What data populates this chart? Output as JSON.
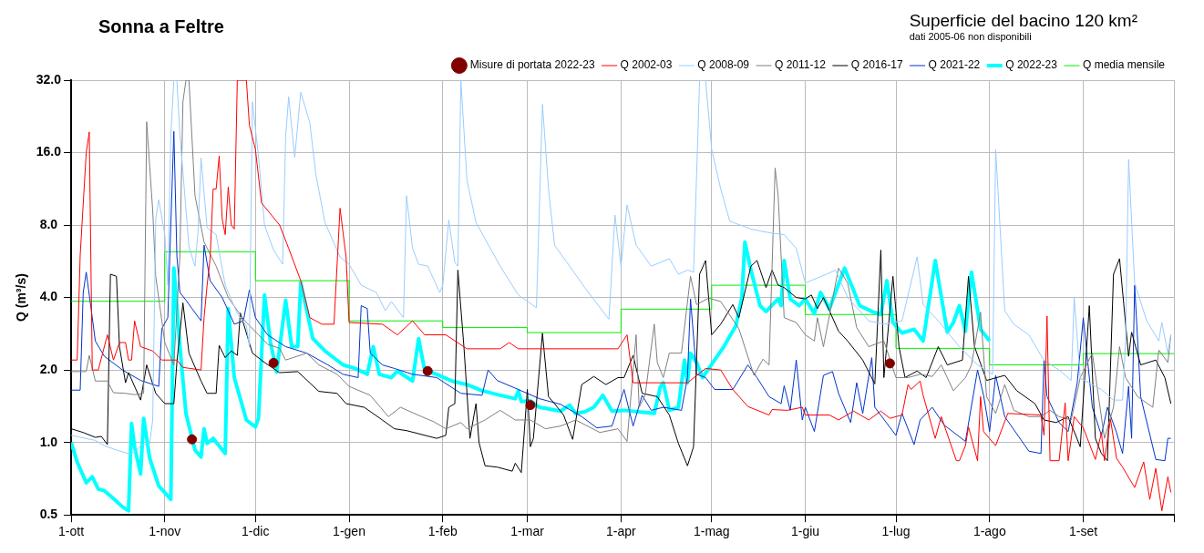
{
  "chart_data": {
    "type": "line",
    "title": "Sonna a Feltre",
    "subtitle": "Superficie del bacino 120 km²",
    "annotations": [
      "dati 2005-06 non disponibili"
    ],
    "ylabel": "Q (m³/s)",
    "xlim": [
      "2022-10-01",
      "2023-10-01"
    ],
    "xticks": [
      {
        "value": "2022-10-01",
        "label": "1-ott"
      },
      {
        "value": "2022-11-01",
        "label": "1-nov"
      },
      {
        "value": "2022-12-01",
        "label": "1-dic"
      },
      {
        "value": "2023-01-01",
        "label": "1-gen"
      },
      {
        "value": "2023-02-01",
        "label": "1-feb"
      },
      {
        "value": "2023-03-01",
        "label": "1-mar"
      },
      {
        "value": "2023-04-01",
        "label": "1-apr"
      },
      {
        "value": "2023-05-01",
        "label": "1-mag"
      },
      {
        "value": "2023-06-01",
        "label": "1-giu"
      },
      {
        "value": "2023-07-01",
        "label": "1-lug"
      },
      {
        "value": "2023-08-01",
        "label": "1-ago"
      },
      {
        "value": "2023-09-01",
        "label": "1-set"
      },
      {
        "value": "2023-10-01",
        "label": null
      }
    ],
    "ylim": [
      0.5,
      32
    ],
    "yticks": [
      {
        "value": 0.5,
        "label": "0.5"
      },
      {
        "value": 1,
        "label": "1.0"
      },
      {
        "value": 2,
        "label": "2.0"
      },
      {
        "value": 4,
        "label": "4.0"
      },
      {
        "value": 8,
        "label": "8.0"
      },
      {
        "value": 16,
        "label": "16.0"
      },
      {
        "value": 32,
        "label": "32.0"
      }
    ],
    "log": "y",
    "grid": true,
    "legend": "top right",
    "marker": "none",
    "series": [
      {
        "name": "Q 2002-03",
        "color": "#ff0000",
        "x": [
          "2022-10-01",
          "2022-10-03",
          "2022-10-04",
          "2022-10-06",
          "2022-10-07",
          "2022-10-08",
          "2022-10-10",
          "2022-10-13",
          "2022-10-15",
          "2022-10-17",
          "2022-10-19",
          "2022-10-20",
          "2022-10-21",
          "2022-10-22",
          "2022-10-24",
          "2022-10-28",
          "2022-10-31",
          "2022-11-05",
          "2022-11-07",
          "2022-11-13",
          "2022-11-14",
          "2022-11-15",
          "2022-11-16",
          "2022-11-17",
          "2022-11-18",
          "2022-11-19",
          "2022-11-20",
          "2022-11-21",
          "2022-11-22",
          "2022-11-23",
          "2022-11-24",
          "2022-11-25",
          "2022-11-28",
          "2022-11-29",
          "2022-12-01",
          "2022-12-03",
          "2022-12-09",
          "2022-12-12",
          "2022-12-16",
          "2022-12-19",
          "2022-12-23",
          "2022-12-27",
          "2022-12-29",
          "2022-12-31",
          "2023-01-01",
          "2023-01-12",
          "2023-01-17",
          "2023-01-22",
          "2023-01-26",
          "2023-02-02",
          "2023-02-09",
          "2023-02-20",
          "2023-02-23",
          "2023-02-26",
          "2023-03-31",
          "2023-04-03",
          "2023-04-05",
          "2023-04-23",
          "2023-04-29",
          "2023-05-04",
          "2023-05-08",
          "2023-05-13",
          "2023-05-20",
          "2023-05-21",
          "2023-05-26",
          "2023-05-31",
          "2023-06-01",
          "2023-06-09",
          "2023-06-12",
          "2023-06-17",
          "2023-06-22",
          "2023-06-26",
          "2023-06-29",
          "2023-07-03",
          "2023-07-05",
          "2023-07-06",
          "2023-07-09",
          "2023-07-10",
          "2023-07-14",
          "2023-07-16",
          "2023-07-21",
          "2023-07-22",
          "2023-07-24",
          "2023-07-25",
          "2023-07-28",
          "2023-07-29",
          "2023-07-30",
          "2023-08-03",
          "2023-08-07",
          "2023-08-18",
          "2023-08-19",
          "2023-08-20",
          "2023-08-21",
          "2023-08-24",
          "2023-08-26",
          "2023-08-27",
          "2023-08-29",
          "2023-09-01",
          "2023-09-05",
          "2023-09-07",
          "2023-09-08",
          "2023-09-10",
          "2023-09-12",
          "2023-09-14",
          "2023-09-18",
          "2023-09-21",
          "2023-09-23",
          "2023-09-25",
          "2023-09-27",
          "2023-09-29",
          "2023-09-30"
        ],
        "values": [
          2.2,
          2.2,
          6,
          16,
          19.5,
          2.0,
          2.0,
          2.8,
          2.2,
          2.6,
          2.6,
          2.2,
          2.2,
          3.2,
          2.5,
          2.4,
          2.2,
          2.2,
          2.05,
          2.0,
          3.3,
          4.5,
          5.8,
          11.3,
          11.3,
          15.5,
          8.5,
          7.3,
          11.5,
          8,
          7.7,
          32,
          32,
          20.8,
          16.5,
          9.9,
          8,
          6.4,
          4.7,
          3.3,
          3.1,
          3.1,
          9.4,
          5.9,
          3.15,
          3.1,
          2.8,
          3.2,
          2.8,
          2.8,
          2.45,
          2.45,
          2.6,
          2.45,
          2.45,
          2.8,
          1.77,
          1.77,
          2.03,
          2.0,
          1.66,
          1.41,
          1.3,
          1.37,
          1.36,
          1.4,
          1.3,
          1.3,
          1.24,
          1.35,
          1.24,
          1.35,
          1.26,
          1.3,
          1.74,
          1.66,
          1.8,
          1.57,
          1.04,
          1.28,
          0.84,
          0.84,
          0.97,
          1.16,
          0.84,
          1.55,
          1.11,
          0.97,
          1.32,
          1.3,
          1.07,
          3.35,
          0.84,
          0.84,
          1.46,
          0.84,
          1.28,
          1.15,
          0.85,
          1.1,
          0.84,
          1.25,
          0.86,
          0.79,
          0.65,
          0.83,
          0.58,
          0.78,
          0.52,
          0.72,
          0.62
        ]
      },
      {
        "name": "Q 2008-09",
        "color": "#99ccff",
        "x": [
          "2022-10-01",
          "2022-10-09",
          "2022-10-12",
          "2022-10-16",
          "2022-10-20",
          "2022-10-22",
          "2022-10-24",
          "2022-10-27",
          "2022-10-28",
          "2022-10-29",
          "2022-10-30",
          "2022-11-01",
          "2022-11-02",
          "2022-11-03",
          "2022-11-04",
          "2022-11-05",
          "2022-11-06",
          "2022-11-09",
          "2022-11-11",
          "2022-11-12",
          "2022-11-13",
          "2022-11-15",
          "2022-11-18",
          "2022-11-21",
          "2022-11-25",
          "2022-11-28",
          "2022-11-29",
          "2022-11-30",
          "2022-12-02",
          "2022-12-04",
          "2022-12-07",
          "2022-12-10",
          "2022-12-11",
          "2022-12-12",
          "2022-12-14",
          "2022-12-16",
          "2022-12-19",
          "2022-12-21",
          "2022-12-24",
          "2022-12-29",
          "2023-01-01",
          "2023-01-05",
          "2023-01-10",
          "2023-01-13",
          "2023-01-15",
          "2023-01-19",
          "2023-01-20",
          "2023-01-22",
          "2023-01-24",
          "2023-01-27",
          "2023-01-31",
          "2023-02-01",
          "2023-02-03",
          "2023-02-05",
          "2023-02-06",
          "2023-02-07",
          "2023-02-09",
          "2023-02-12",
          "2023-02-20",
          "2023-02-26",
          "2023-03-04",
          "2023-03-06",
          "2023-03-08",
          "2023-03-10",
          "2023-03-15",
          "2023-03-20",
          "2023-03-28",
          "2023-03-30",
          "2023-04-01",
          "2023-04-03",
          "2023-04-06",
          "2023-04-11",
          "2023-04-17",
          "2023-04-20",
          "2023-04-23",
          "2023-04-25",
          "2023-04-27",
          "2023-04-29",
          "2023-05-01",
          "2023-05-04",
          "2023-05-07",
          "2023-05-14",
          "2023-05-21",
          "2023-05-25",
          "2023-05-29",
          "2023-06-01",
          "2023-06-08",
          "2023-06-11",
          "2023-06-15",
          "2023-06-22",
          "2023-06-27",
          "2023-07-03",
          "2023-07-08",
          "2023-07-10",
          "2023-07-15",
          "2023-07-22",
          "2023-07-28",
          "2023-08-02",
          "2023-08-03",
          "2023-08-06",
          "2023-08-09",
          "2023-08-14",
          "2023-08-19",
          "2023-08-24",
          "2023-08-28",
          "2023-08-29",
          "2023-08-31",
          "2023-09-07",
          "2023-09-11",
          "2023-09-14",
          "2023-09-15",
          "2023-09-16",
          "2023-09-18",
          "2023-09-22",
          "2023-09-26",
          "2023-09-27",
          "2023-09-29",
          "2023-09-30"
        ],
        "values": [
          1.07,
          1.02,
          0.97,
          0.93,
          0.9,
          0.91,
          0.97,
          0.99,
          1.24,
          8.5,
          10.2,
          7.3,
          4.5,
          19,
          32,
          32,
          19,
          6.5,
          5.4,
          7.5,
          15.2,
          7.8,
          7.3,
          4.5,
          3.43,
          3.06,
          2.5,
          26,
          15.5,
          8,
          6.3,
          5.5,
          18.6,
          27.3,
          15.3,
          28.5,
          21.3,
          13,
          8.2,
          5.9,
          5.5,
          4.5,
          4.2,
          3.53,
          3.85,
          3.3,
          10.6,
          6.4,
          5.5,
          5.4,
          4.2,
          4.5,
          8.4,
          5.6,
          5.4,
          32,
          12.3,
          8.2,
          5.4,
          4.1,
          3.63,
          25.4,
          11.3,
          6.6,
          5.4,
          4.4,
          3.25,
          8.8,
          5.4,
          9.7,
          6.6,
          5.4,
          5.8,
          5.0,
          5.2,
          5.1,
          32,
          32,
          16.5,
          11.3,
          8.3,
          7.7,
          7.4,
          7.3,
          6.4,
          4.6,
          5.0,
          5.2,
          4.0,
          3.2,
          3.1,
          3.2,
          5.9,
          3.74,
          3.2,
          2.5,
          2.1,
          1.92,
          16.5,
          3.53,
          3.1,
          2.8,
          2.19,
          2.0,
          1.81,
          4.0,
          1.85,
          1.66,
          1.5,
          1.5,
          2.64,
          15,
          4.6,
          3.2,
          2.64,
          3.15,
          2.35,
          2.8
        ]
      },
      {
        "name": "Q 2011-12",
        "color": "#808080",
        "x": [
          "2022-10-01",
          "2022-10-06",
          "2022-10-07",
          "2022-10-09",
          "2022-10-13",
          "2022-10-15",
          "2022-10-19",
          "2022-10-22",
          "2022-10-25",
          "2022-10-26",
          "2022-10-28",
          "2022-10-29",
          "2022-11-01",
          "2022-11-04",
          "2022-11-06",
          "2022-11-07",
          "2022-11-08",
          "2022-11-09",
          "2022-11-11",
          "2022-11-14",
          "2022-11-18",
          "2022-11-22",
          "2022-11-27",
          "2022-12-02",
          "2022-12-05",
          "2022-12-09",
          "2022-12-11",
          "2022-12-18",
          "2022-12-22",
          "2022-12-28",
          "2023-01-01",
          "2023-01-08",
          "2023-01-14",
          "2023-01-18",
          "2023-01-25",
          "2023-01-29",
          "2023-02-02",
          "2023-02-07",
          "2023-02-09",
          "2023-02-15",
          "2023-02-20",
          "2023-02-25",
          "2023-03-02",
          "2023-03-07",
          "2023-03-12",
          "2023-03-17",
          "2023-03-25",
          "2023-03-31",
          "2023-04-03",
          "2023-04-06",
          "2023-04-07",
          "2023-04-09",
          "2023-04-12",
          "2023-04-13",
          "2023-04-15",
          "2023-04-17",
          "2023-04-21",
          "2023-04-24",
          "2023-04-26",
          "2023-04-30",
          "2023-05-04",
          "2023-05-10",
          "2023-05-15",
          "2023-05-18",
          "2023-05-20",
          "2023-05-22",
          "2023-05-23",
          "2023-05-25",
          "2023-05-29",
          "2023-06-01",
          "2023-06-04",
          "2023-06-05",
          "2023-06-07",
          "2023-06-12",
          "2023-06-15",
          "2023-06-18",
          "2023-06-22",
          "2023-06-27",
          "2023-07-01",
          "2023-07-05",
          "2023-07-09",
          "2023-07-13",
          "2023-07-16",
          "2023-07-20",
          "2023-07-24",
          "2023-07-26",
          "2023-07-29",
          "2023-07-31",
          "2023-08-03",
          "2023-08-06",
          "2023-08-09",
          "2023-08-14",
          "2023-08-18",
          "2023-08-21",
          "2023-08-24",
          "2023-08-28",
          "2023-08-31",
          "2023-09-04",
          "2023-09-08",
          "2023-09-11",
          "2023-09-13",
          "2023-09-15",
          "2023-09-19",
          "2023-09-24",
          "2023-09-26",
          "2023-09-29",
          "2023-09-30"
        ],
        "values": [
          1.97,
          1.97,
          2.3,
          1.8,
          1.8,
          1.61,
          1.6,
          1.58,
          1.6,
          21.5,
          9.2,
          4.9,
          2.6,
          2.1,
          5.95,
          26,
          32,
          32,
          10.6,
          6.8,
          5.4,
          4.0,
          3.25,
          2.8,
          2.56,
          2.46,
          2.2,
          2.35,
          2.1,
          1.92,
          1.71,
          1.57,
          1.28,
          1.4,
          1.28,
          1.22,
          1.14,
          1.21,
          1.14,
          1.24,
          1.36,
          1.24,
          1.24,
          1.14,
          1.17,
          1.24,
          1.1,
          1.14,
          1.01,
          2.8,
          1.4,
          1.57,
          3.1,
          2.15,
          1.86,
          2.35,
          2.35,
          4.9,
          3.74,
          3.98,
          3.85,
          2.97,
          1.9,
          2.22,
          2.1,
          13.8,
          10.6,
          3.3,
          3.15,
          2.8,
          2.64,
          3.3,
          2.5,
          5.3,
          4.6,
          3.0,
          2.5,
          2.64,
          1.86,
          1.86,
          1.92,
          1.88,
          2.1,
          1.64,
          1.86,
          2.1,
          3.48,
          1.55,
          1.32,
          1.74,
          1.36,
          1.28,
          1.28,
          1.36,
          1.28,
          1.24,
          1.86,
          2.35,
          1.04,
          1.4,
          2.5,
          1.86,
          1.55,
          1.4,
          2.42,
          2.15,
          2.8
        ]
      },
      {
        "name": "Q 2016-17",
        "color": "#000000",
        "x": [
          "2022-10-01",
          "2022-10-05",
          "2022-10-09",
          "2022-10-11",
          "2022-10-13",
          "2022-10-14",
          "2022-10-16",
          "2022-10-17",
          "2022-10-19",
          "2022-10-20",
          "2022-10-24",
          "2022-10-26",
          "2022-10-29",
          "2022-11-01",
          "2022-11-04",
          "2022-11-05",
          "2022-11-07",
          "2022-11-09",
          "2022-11-13",
          "2022-11-15",
          "2022-11-18",
          "2022-11-19",
          "2022-11-21",
          "2022-11-23",
          "2022-11-25",
          "2022-11-26",
          "2022-11-30",
          "2022-12-04",
          "2022-12-09",
          "2022-12-15",
          "2022-12-22",
          "2022-12-28",
          "2022-12-31",
          "2023-01-06",
          "2023-01-12",
          "2023-01-16",
          "2023-01-20",
          "2023-01-30",
          "2023-02-02",
          "2023-02-03",
          "2023-02-05",
          "2023-02-06",
          "2023-02-08",
          "2023-02-10",
          "2023-02-12",
          "2023-02-13",
          "2023-02-15",
          "2023-02-19",
          "2023-02-24",
          "2023-02-25",
          "2023-02-27",
          "2023-03-01",
          "2023-03-02",
          "2023-03-03",
          "2023-03-06",
          "2023-03-08",
          "2023-03-10",
          "2023-03-13",
          "2023-03-16",
          "2023-03-19",
          "2023-03-23",
          "2023-03-27",
          "2023-03-31",
          "2023-04-02",
          "2023-04-05",
          "2023-04-08",
          "2023-04-13",
          "2023-04-17",
          "2023-04-20",
          "2023-04-23",
          "2023-04-25",
          "2023-04-27",
          "2023-04-29",
          "2023-05-01",
          "2023-05-04",
          "2023-05-08",
          "2023-05-10",
          "2023-05-14",
          "2023-05-16",
          "2023-05-19",
          "2023-05-21",
          "2023-05-23",
          "2023-05-25",
          "2023-05-29",
          "2023-06-01",
          "2023-06-03",
          "2023-06-05",
          "2023-06-07",
          "2023-06-12",
          "2023-06-15",
          "2023-06-20",
          "2023-06-24",
          "2023-06-26",
          "2023-06-27",
          "2023-06-30",
          "2023-07-02",
          "2023-07-04",
          "2023-07-08",
          "2023-07-11",
          "2023-07-15",
          "2023-07-18",
          "2023-07-23",
          "2023-07-25",
          "2023-07-27",
          "2023-07-31",
          "2023-08-06",
          "2023-08-10",
          "2023-08-16",
          "2023-08-19",
          "2023-08-23",
          "2023-08-27",
          "2023-08-31",
          "2023-09-03",
          "2023-09-05",
          "2023-09-07",
          "2023-09-09",
          "2023-09-11",
          "2023-09-13",
          "2023-09-16",
          "2023-09-17",
          "2023-09-20",
          "2023-09-25",
          "2023-09-28",
          "2023-09-30"
        ],
        "values": [
          1.14,
          1.1,
          1.05,
          1.06,
          0.98,
          5.0,
          4.9,
          2.5,
          1.77,
          1.95,
          1.5,
          2.1,
          1.6,
          1.45,
          1.45,
          2.15,
          3.8,
          2.35,
          1.8,
          1.6,
          1.6,
          2.53,
          2.25,
          2.4,
          2.3,
          3.45,
          2.35,
          2.15,
          1.95,
          1.97,
          1.63,
          1.6,
          1.45,
          1.4,
          1.24,
          1.14,
          1.12,
          1.04,
          1.07,
          1.4,
          1.45,
          5.2,
          2.5,
          1.04,
          1.45,
          1.0,
          0.8,
          0.79,
          0.76,
          0.82,
          0.75,
          1.66,
          0.96,
          1.04,
          2.84,
          1.55,
          1.45,
          1.3,
          1.03,
          1.74,
          1.88,
          1.74,
          1.86,
          1.86,
          2.3,
          1.6,
          1.55,
          1.3,
          0.99,
          0.8,
          0.96,
          5.0,
          5.7,
          2.8,
          3.1,
          3.74,
          3.3,
          5.4,
          5.7,
          4.4,
          5.2,
          4.5,
          4.4,
          4.0,
          3.95,
          4.1,
          3.6,
          4.0,
          2.9,
          2.64,
          2.2,
          1.75,
          6.3,
          1.86,
          4.9,
          2.5,
          1.86,
          1.98,
          1.86,
          2.5,
          2.1,
          2.2,
          4.9,
          2.5,
          1.81,
          1.9,
          1.64,
          1.45,
          1.24,
          1.21,
          1.28,
          0.96,
          3.7,
          1.04,
          0.9,
          0.84,
          5.0,
          5.8,
          2.28,
          2.87,
          2.1,
          2.2,
          1.86,
          1.45
        ]
      },
      {
        "name": "Q 2021-22",
        "color": "#0033cc",
        "x": [
          "2022-10-01",
          "2022-10-04",
          "2022-10-05",
          "2022-10-06",
          "2022-10-08",
          "2022-10-09",
          "2022-10-12",
          "2022-10-18",
          "2022-10-24",
          "2022-10-30",
          "2022-10-31",
          "2022-11-02",
          "2022-11-04",
          "2022-11-05",
          "2022-11-06",
          "2022-11-08",
          "2022-11-10",
          "2022-11-13",
          "2022-11-14",
          "2022-11-16",
          "2022-11-20",
          "2022-11-24",
          "2022-11-27",
          "2022-11-29",
          "2022-12-01",
          "2022-12-05",
          "2022-12-11",
          "2022-12-18",
          "2022-12-25",
          "2022-12-30",
          "2023-01-04",
          "2023-01-05",
          "2023-01-07",
          "2023-01-08",
          "2023-01-12",
          "2023-01-16",
          "2023-01-22",
          "2023-01-30",
          "2023-02-07",
          "2023-02-14",
          "2023-02-16",
          "2023-02-19",
          "2023-02-26",
          "2023-03-05",
          "2023-03-12",
          "2023-03-19",
          "2023-03-24",
          "2023-03-29",
          "2023-04-02",
          "2023-04-05",
          "2023-04-08",
          "2023-04-11",
          "2023-04-15",
          "2023-04-21",
          "2023-04-23",
          "2023-04-24",
          "2023-04-26",
          "2023-04-29",
          "2023-05-02",
          "2023-05-08",
          "2023-05-13",
          "2023-05-16",
          "2023-05-20",
          "2023-05-24",
          "2023-05-25",
          "2023-05-27",
          "2023-05-29",
          "2023-05-31",
          "2023-06-01",
          "2023-06-04",
          "2023-06-07",
          "2023-06-10",
          "2023-06-12",
          "2023-06-16",
          "2023-06-18",
          "2023-06-20",
          "2023-06-23",
          "2023-06-24",
          "2023-07-01",
          "2023-07-03",
          "2023-07-07",
          "2023-07-09",
          "2023-07-13",
          "2023-07-17",
          "2023-07-24",
          "2023-07-28",
          "2023-07-30",
          "2023-08-01",
          "2023-08-03",
          "2023-08-06",
          "2023-08-14",
          "2023-08-18",
          "2023-08-19",
          "2023-08-20",
          "2023-08-24",
          "2023-08-27",
          "2023-08-30",
          "2023-09-01",
          "2023-09-04",
          "2023-09-07",
          "2023-09-09",
          "2023-09-12",
          "2023-09-14",
          "2023-09-16",
          "2023-09-17",
          "2023-09-18",
          "2023-09-20",
          "2023-09-25",
          "2023-09-28",
          "2023-09-29",
          "2023-09-30"
        ],
        "values": [
          1.65,
          1.65,
          4.2,
          5.1,
          3.3,
          2.64,
          2.28,
          2.0,
          1.81,
          1.71,
          2.97,
          3.3,
          19.6,
          5.95,
          4.2,
          3.9,
          3.6,
          3.2,
          6.6,
          4.7,
          4.0,
          3.1,
          3.2,
          4.3,
          3.3,
          2.8,
          2.5,
          2.35,
          2.1,
          1.92,
          1.86,
          3.7,
          3.6,
          2.35,
          2.1,
          2.03,
          1.92,
          1.86,
          1.6,
          1.57,
          2.0,
          1.81,
          1.66,
          1.52,
          1.44,
          1.28,
          1.15,
          1.17,
          1.66,
          1.17,
          1.57,
          1.36,
          1.4,
          1.36,
          1.86,
          3.95,
          1.92,
          1.86,
          1.66,
          1.66,
          2.1,
          1.86,
          1.55,
          1.45,
          1.72,
          1.36,
          2.2,
          1.24,
          1.4,
          1.11,
          1.9,
          1.97,
          1.6,
          1.21,
          1.77,
          1.32,
          2.25,
          1.4,
          1.07,
          1.32,
          0.98,
          1.24,
          1.4,
          1.18,
          1.01,
          2.0,
          1.57,
          1.11,
          1.9,
          1.28,
          0.92,
          0.9,
          2.2,
          1.55,
          1.21,
          1.11,
          1.77,
          3.3,
          1.4,
          1.07,
          1.4,
          1.1,
          0.9,
          1.71,
          1.04,
          4.5,
          1.55,
          0.85,
          0.84,
          1.04,
          1.04
        ]
      },
      {
        "name": "Q 2022-23",
        "color": "#00ffff",
        "x": [
          "2022-10-01",
          "2022-10-03",
          "2022-10-06",
          "2022-10-08",
          "2022-10-10",
          "2022-10-12",
          "2022-10-14",
          "2022-10-18",
          "2022-10-20",
          "2022-10-21",
          "2022-10-22",
          "2022-10-24",
          "2022-10-25",
          "2022-10-27",
          "2022-10-30",
          "2022-11-03",
          "2022-11-04",
          "2022-11-06",
          "2022-11-08",
          "2022-11-11",
          "2022-11-13",
          "2022-11-14",
          "2022-11-15",
          "2022-11-17",
          "2022-11-21",
          "2022-11-22",
          "2022-11-24",
          "2022-11-28",
          "2022-12-01",
          "2022-12-02",
          "2022-12-04",
          "2022-12-06",
          "2022-12-08",
          "2022-12-11",
          "2022-12-13",
          "2022-12-15",
          "2022-12-16",
          "2022-12-20",
          "2022-12-24",
          "2022-12-30",
          "2023-01-03",
          "2023-01-07",
          "2023-01-09",
          "2023-01-11",
          "2023-01-15",
          "2023-01-17",
          "2023-01-22",
          "2023-01-24",
          "2023-01-26",
          "2023-01-30",
          "2023-02-04",
          "2023-02-09",
          "2023-02-14",
          "2023-02-20",
          "2023-02-25",
          "2023-02-26",
          "2023-02-27",
          "2023-03-02",
          "2023-03-05",
          "2023-03-12",
          "2023-03-15",
          "2023-03-17",
          "2023-03-20",
          "2023-03-23",
          "2023-03-26",
          "2023-03-29",
          "2023-04-02",
          "2023-04-12",
          "2023-04-14",
          "2023-04-15",
          "2023-04-17",
          "2023-04-20",
          "2023-04-22",
          "2023-04-23",
          "2023-04-24",
          "2023-04-26",
          "2023-04-28",
          "2023-05-02",
          "2023-05-05",
          "2023-05-09",
          "2023-05-11",
          "2023-05-12",
          "2023-05-14",
          "2023-05-17",
          "2023-05-19",
          "2023-05-23",
          "2023-05-24",
          "2023-05-25",
          "2023-05-27",
          "2023-05-30",
          "2023-06-01",
          "2023-06-04",
          "2023-06-06",
          "2023-06-09",
          "2023-06-14",
          "2023-06-19",
          "2023-06-23",
          "2023-06-26",
          "2023-06-28",
          "2023-06-30",
          "2023-07-03",
          "2023-07-07",
          "2023-07-10",
          "2023-07-14",
          "2023-07-18",
          "2023-07-20",
          "2023-07-22",
          "2023-07-24",
          "2023-07-26",
          "2023-07-29",
          "2023-08-01"
        ],
        "values": [
          1.0,
          0.83,
          0.68,
          0.72,
          0.64,
          0.63,
          0.6,
          0.54,
          0.52,
          1.2,
          0.96,
          0.74,
          1.26,
          0.86,
          0.66,
          0.58,
          5.3,
          2.5,
          1.32,
          0.93,
          0.87,
          1.14,
          0.99,
          1.04,
          0.9,
          3.6,
          1.86,
          1.24,
          1.16,
          1.26,
          4.1,
          2.6,
          1.96,
          3.9,
          2.5,
          2.5,
          4.6,
          2.7,
          2.4,
          2.1,
          2.03,
          1.92,
          2.5,
          1.92,
          1.86,
          1.98,
          1.8,
          2.7,
          2.0,
          1.92,
          1.8,
          1.74,
          1.64,
          1.57,
          1.52,
          1.64,
          1.48,
          1.49,
          1.4,
          1.35,
          1.43,
          1.32,
          1.34,
          1.4,
          1.57,
          1.35,
          1.36,
          1.32,
          1.7,
          1.77,
          1.36,
          1.4,
          2.2,
          1.77,
          2.35,
          2.15,
          1.86,
          2.2,
          2.5,
          3.05,
          4.0,
          6.8,
          5.2,
          3.7,
          3.5,
          3.95,
          3.7,
          5.7,
          3.95,
          3.7,
          3.95,
          3.43,
          4.2,
          3.6,
          5.3,
          3.7,
          3.5,
          3.4,
          4.7,
          3.15,
          2.85,
          2.95,
          2.64,
          5.7,
          2.87,
          3.15,
          3.7,
          2.9,
          5.1,
          2.95,
          2.64
        ]
      },
      {
        "name": "Q media mensile",
        "type": "step",
        "color": "#00ee00",
        "x": [
          "2022-10-01",
          "2022-11-01",
          "2022-12-01",
          "2023-01-01",
          "2023-02-01",
          "2023-03-01",
          "2023-04-01",
          "2023-05-01",
          "2023-06-01",
          "2023-07-01",
          "2023-08-01",
          "2023-09-01",
          "2023-10-01"
        ],
        "values": [
          3.86,
          6.2,
          4.7,
          3.2,
          3.0,
          2.86,
          3.58,
          4.5,
          3.4,
          2.46,
          2.1,
          2.34,
          2.34
        ]
      },
      {
        "name": "Misure di portata 2022-23",
        "type": "scatter",
        "marker": "circle",
        "color": "#800000",
        "x": [
          "2022-11-10",
          "2022-12-07",
          "2023-01-27",
          "2023-03-02",
          "2023-06-29"
        ],
        "values": [
          1.03,
          2.14,
          1.98,
          1.43,
          2.13
        ]
      }
    ]
  }
}
